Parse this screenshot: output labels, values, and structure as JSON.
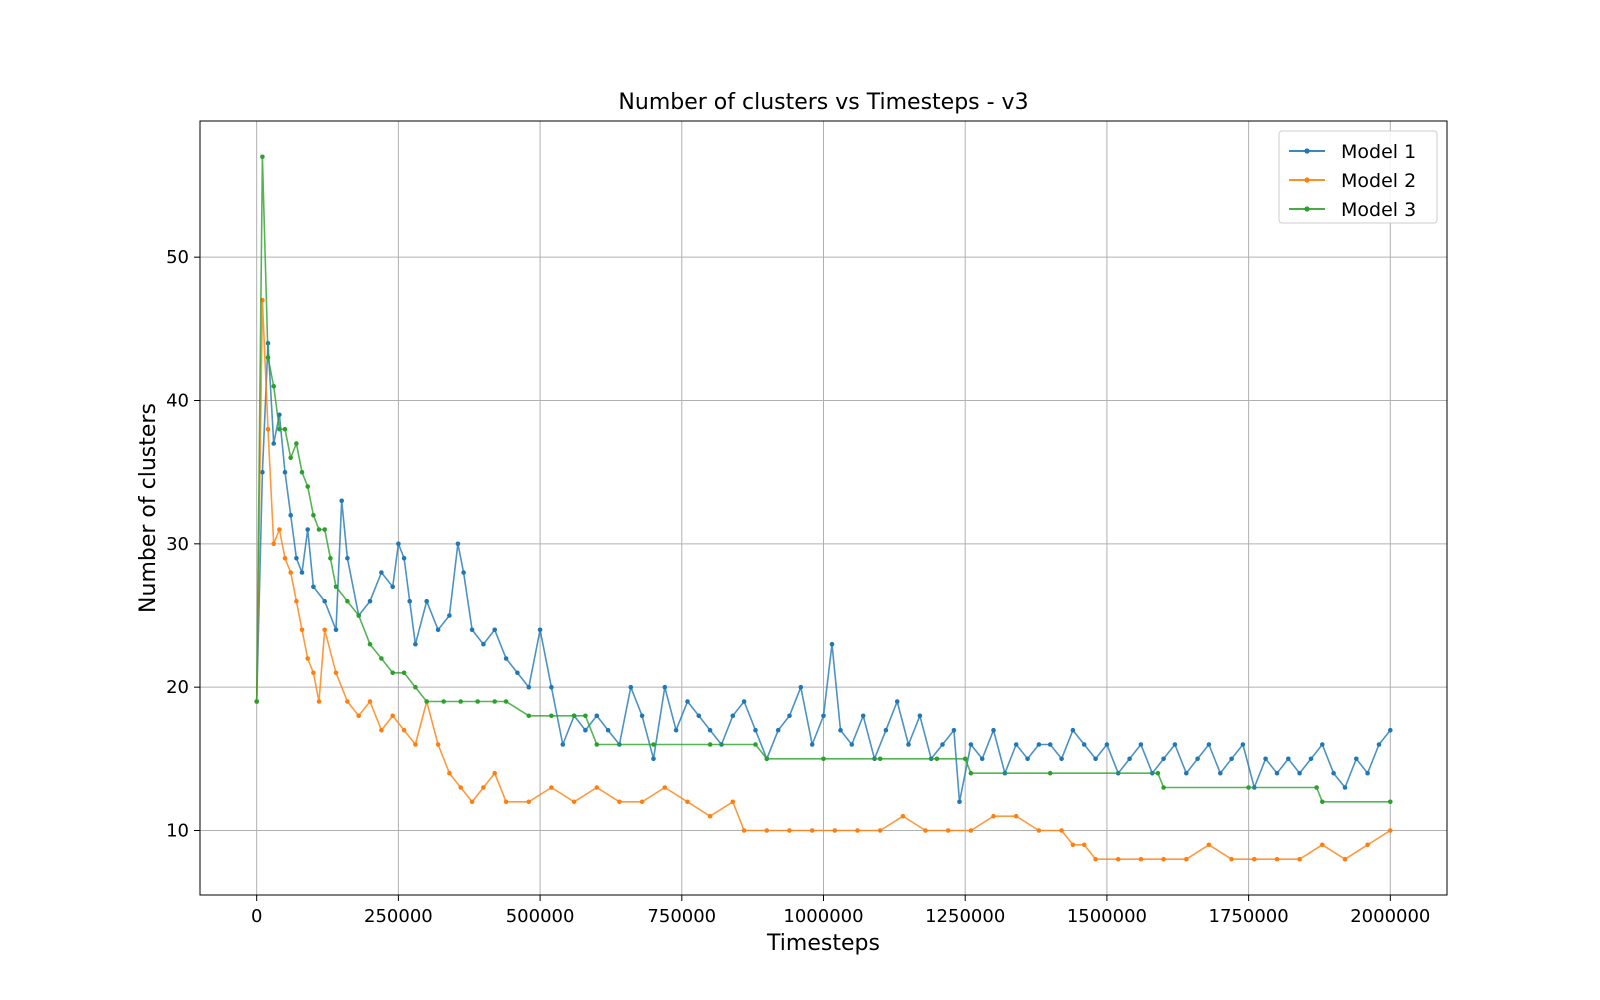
{
  "chart_data": {
    "type": "line",
    "title": "Number of clusters vs Timesteps - v3",
    "xlabel": "Timesteps",
    "ylabel": "Number of clusters",
    "xlim": [
      -100000,
      2100000
    ],
    "ylim": [
      5.5,
      59.5
    ],
    "xticks": [
      0,
      250000,
      500000,
      750000,
      1000000,
      1250000,
      1500000,
      1750000,
      2000000
    ],
    "yticks": [
      10,
      20,
      30,
      40,
      50
    ],
    "grid": true,
    "legend_position": "top-right",
    "series": [
      {
        "name": "Model 1",
        "color": "#1f77b4",
        "x": [
          0,
          10000,
          20000,
          30000,
          40000,
          50000,
          60000,
          70000,
          80000,
          90000,
          100000,
          120000,
          140000,
          150000,
          160000,
          180000,
          200000,
          220000,
          240000,
          250000,
          260000,
          270000,
          280000,
          300000,
          320000,
          340000,
          355000,
          365000,
          380000,
          400000,
          420000,
          440000,
          460000,
          480000,
          500000,
          520000,
          540000,
          560000,
          580000,
          600000,
          620000,
          640000,
          660000,
          680000,
          700000,
          720000,
          740000,
          760000,
          780000,
          800000,
          820000,
          840000,
          860000,
          880000,
          900000,
          920000,
          940000,
          960000,
          980000,
          1000000,
          1015000,
          1030000,
          1050000,
          1070000,
          1090000,
          1110000,
          1130000,
          1150000,
          1170000,
          1190000,
          1210000,
          1230000,
          1240000,
          1260000,
          1280000,
          1300000,
          1320000,
          1340000,
          1360000,
          1380000,
          1400000,
          1420000,
          1440000,
          1460000,
          1480000,
          1500000,
          1520000,
          1540000,
          1560000,
          1580000,
          1600000,
          1620000,
          1640000,
          1660000,
          1680000,
          1700000,
          1720000,
          1740000,
          1760000,
          1780000,
          1800000,
          1820000,
          1840000,
          1860000,
          1880000,
          1900000,
          1920000,
          1940000,
          1960000,
          1980000,
          2000000
        ],
        "y": [
          19,
          35,
          44,
          37,
          39,
          35,
          32,
          29,
          28,
          31,
          27,
          26,
          24,
          33,
          29,
          25,
          26,
          28,
          27,
          30,
          29,
          26,
          23,
          26,
          24,
          25,
          30,
          28,
          24,
          23,
          24,
          22,
          21,
          20,
          24,
          20,
          16,
          18,
          17,
          18,
          17,
          16,
          20,
          18,
          15,
          20,
          17,
          19,
          18,
          17,
          16,
          18,
          19,
          17,
          15,
          17,
          18,
          20,
          16,
          18,
          23,
          17,
          16,
          18,
          15,
          17,
          19,
          16,
          18,
          15,
          16,
          17,
          12,
          16,
          15,
          17,
          14,
          16,
          15,
          16,
          16,
          15,
          17,
          16,
          15,
          16,
          14,
          15,
          16,
          14,
          15,
          16,
          14,
          15,
          16,
          14,
          15,
          16,
          13,
          15,
          14,
          15,
          14,
          15,
          16,
          14,
          13,
          15,
          14,
          16,
          17
        ]
      },
      {
        "name": "Model 2",
        "color": "#ff7f0e",
        "x": [
          0,
          10000,
          20000,
          30000,
          40000,
          50000,
          60000,
          70000,
          80000,
          90000,
          100000,
          110000,
          120000,
          140000,
          160000,
          180000,
          200000,
          220000,
          240000,
          260000,
          280000,
          300000,
          320000,
          340000,
          360000,
          380000,
          400000,
          420000,
          440000,
          480000,
          520000,
          560000,
          600000,
          640000,
          680000,
          720000,
          760000,
          800000,
          840000,
          860000,
          900000,
          940000,
          980000,
          1020000,
          1060000,
          1100000,
          1140000,
          1180000,
          1220000,
          1260000,
          1300000,
          1340000,
          1380000,
          1420000,
          1440000,
          1460000,
          1480000,
          1520000,
          1560000,
          1600000,
          1640000,
          1680000,
          1720000,
          1760000,
          1800000,
          1840000,
          1880000,
          1920000,
          1960000,
          2000000
        ],
        "y": [
          19,
          47,
          38,
          30,
          31,
          29,
          28,
          26,
          24,
          22,
          21,
          19,
          24,
          21,
          19,
          18,
          19,
          17,
          18,
          17,
          16,
          19,
          16,
          14,
          13,
          12,
          13,
          14,
          12,
          12,
          13,
          12,
          13,
          12,
          12,
          13,
          12,
          11,
          12,
          10,
          10,
          10,
          10,
          10,
          10,
          10,
          11,
          10,
          10,
          10,
          11,
          11,
          10,
          10,
          9,
          9,
          8,
          8,
          8,
          8,
          8,
          9,
          8,
          8,
          8,
          8,
          9,
          8,
          9,
          10
        ]
      },
      {
        "name": "Model 3",
        "color": "#2ca02c",
        "x": [
          0,
          10000,
          20000,
          30000,
          40000,
          50000,
          60000,
          70000,
          80000,
          90000,
          100000,
          110000,
          120000,
          130000,
          140000,
          160000,
          180000,
          200000,
          220000,
          240000,
          260000,
          280000,
          300000,
          330000,
          360000,
          390000,
          420000,
          440000,
          480000,
          520000,
          560000,
          580000,
          600000,
          700000,
          800000,
          880000,
          900000,
          1000000,
          1100000,
          1200000,
          1250000,
          1260000,
          1400000,
          1590000,
          1600000,
          1750000,
          1870000,
          1880000,
          2000000
        ],
        "y": [
          19,
          57,
          43,
          41,
          38,
          38,
          36,
          37,
          35,
          34,
          32,
          31,
          31,
          29,
          27,
          26,
          25,
          23,
          22,
          21,
          21,
          20,
          19,
          19,
          19,
          19,
          19,
          19,
          18,
          18,
          18,
          18,
          16,
          16,
          16,
          16,
          15,
          15,
          15,
          15,
          15,
          14,
          14,
          14,
          13,
          13,
          13,
          12,
          12
        ]
      }
    ]
  }
}
